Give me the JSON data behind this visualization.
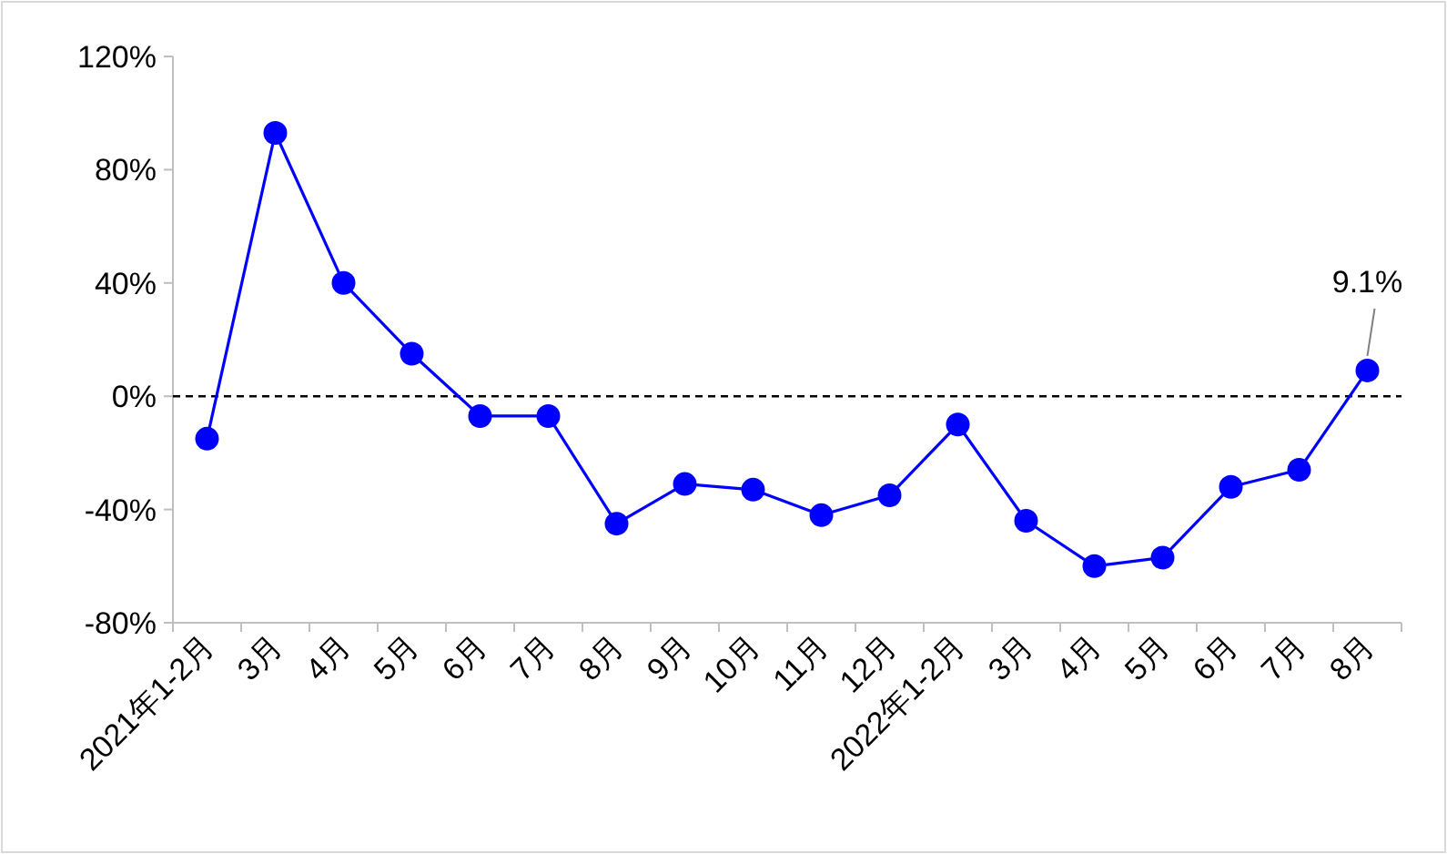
{
  "chart_data": {
    "type": "line",
    "categories": [
      "2021年1-2月",
      "3月",
      "4月",
      "5月",
      "6月",
      "7月",
      "8月",
      "9月",
      "10月",
      "11月",
      "12月",
      "2022年1-2月",
      "3月",
      "4月",
      "5月",
      "6月",
      "7月",
      "8月"
    ],
    "series": [
      {
        "color": "#0000ff",
        "values": [
          -15,
          93,
          40,
          15,
          -7,
          -7,
          -45,
          -31,
          -33,
          -42,
          -35,
          -10,
          -44,
          -60,
          -57,
          -32,
          -26,
          9.1
        ]
      }
    ],
    "ylim": [
      -80,
      120
    ],
    "yticks": [
      {
        "value": -80,
        "label": "-80%"
      },
      {
        "value": -40,
        "label": "-40%"
      },
      {
        "value": 0,
        "label": "0%"
      },
      {
        "value": 40,
        "label": "40%"
      },
      {
        "value": 80,
        "label": "80%"
      },
      {
        "value": 120,
        "label": "120%"
      }
    ],
    "ref_lines": [
      {
        "axis": "y",
        "value": 0,
        "color": "#000000",
        "line_style": "dashed"
      }
    ],
    "annotations": [
      {
        "text": "9.1%",
        "y": 9.1
      }
    ],
    "marker": "circle",
    "line_style": "solid",
    "grid": false
  }
}
